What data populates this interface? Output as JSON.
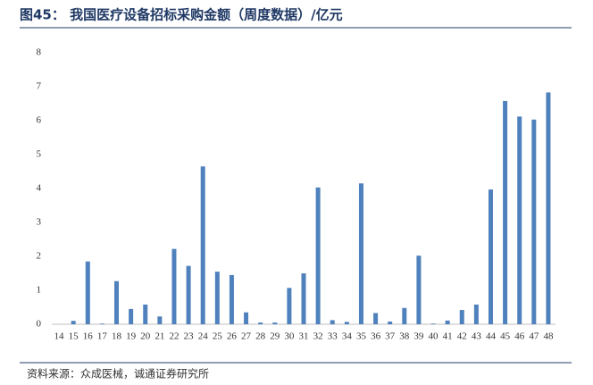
{
  "chart_data": {
    "type": "bar",
    "title": "图45：  我国医疗设备招标采购金额（周度数据）/亿元",
    "source": "资料来源：众成医械，诚通证券研究所",
    "categories": [
      "14",
      "15",
      "16",
      "17",
      "18",
      "19",
      "20",
      "21",
      "22",
      "23",
      "24",
      "25",
      "26",
      "27",
      "28",
      "29",
      "30",
      "31",
      "32",
      "33",
      "34",
      "35",
      "36",
      "37",
      "38",
      "39",
      "40",
      "41",
      "42",
      "43",
      "44",
      "45",
      "46",
      "47",
      "48"
    ],
    "values": [
      0.0,
      0.1,
      1.85,
      0.02,
      1.27,
      0.45,
      0.58,
      0.23,
      2.22,
      1.72,
      4.65,
      1.55,
      1.45,
      0.35,
      0.05,
      0.05,
      1.07,
      1.5,
      4.03,
      0.12,
      0.07,
      4.15,
      0.33,
      0.08,
      0.48,
      2.02,
      0.02,
      0.11,
      0.42,
      0.58,
      3.97,
      6.58,
      6.12,
      6.03,
      6.83
    ],
    "color": "#4f81bd",
    "ylim": [
      0,
      8
    ],
    "yticks": [
      0,
      1,
      2,
      3,
      4,
      5,
      6,
      7,
      8
    ],
    "grid": false
  }
}
